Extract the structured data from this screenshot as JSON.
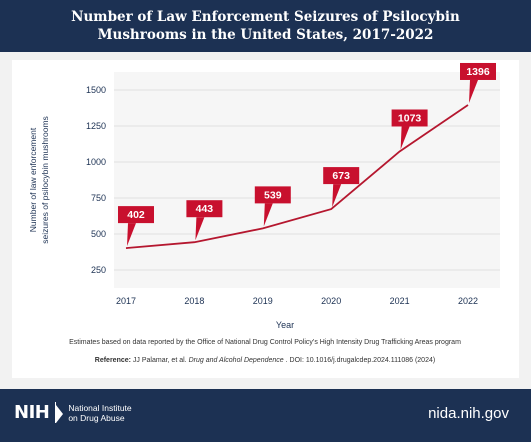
{
  "header": {
    "title": "Number of Law Enforcement Seizures of Psilocybin Mushrooms in the United States, 2017-2022"
  },
  "chart_data": {
    "type": "line",
    "title": "Number of Law Enforcement Seizures of Psilocybin Mushrooms in the United States, 2017-2022",
    "xlabel": "Year",
    "ylabel": "Number of law enforcement seizures of psilocybin mushrooms",
    "x": [
      "2017",
      "2018",
      "2019",
      "2020",
      "2021",
      "2022"
    ],
    "values": [
      402,
      443,
      539,
      673,
      1073,
      1396
    ],
    "yticks": [
      250,
      500,
      750,
      1000,
      1250,
      1500
    ],
    "ylim": [
      125,
      1625
    ],
    "grid": "horizontal",
    "line_color": "#b5172f",
    "label_color": "#c8102e"
  },
  "chart_text": {
    "ylabel_line1": "Number of law enforcement",
    "ylabel_line2": "seizures of psilocybin mushrooms",
    "note": "Estimates based on data reported by the Office of National Drug Control Policy’s High Intensity Drug Trafficking Areas program",
    "reference_label": "Reference:",
    "reference_authors": "JJ Palamar, et al.",
    "reference_journal": "Drug and Alcohol Dependence",
    "reference_rest": ". DOI: 10.1016/j.drugalcdep.2024.111086 (2024)"
  },
  "footer": {
    "logo_mark": "NIH",
    "org_line1": "National Institute",
    "org_line2": "on Drug Abuse",
    "url": "nida.nih.gov"
  }
}
